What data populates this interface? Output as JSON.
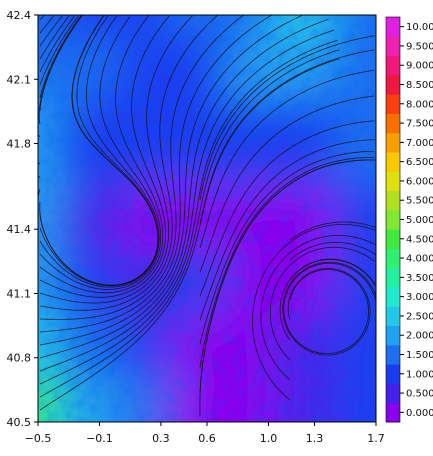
{
  "chart_data": {
    "type": "heatmap",
    "title": "",
    "xlabel": "",
    "ylabel": "",
    "xlim": [
      -0.5,
      1.7
    ],
    "ylim": [
      40.5,
      42.4
    ],
    "x_ticks": [
      {
        "value": -0.5,
        "label": "−0.5"
      },
      {
        "value": -0.1,
        "label": "−0.1"
      },
      {
        "value": 0.3,
        "label": "0.3"
      },
      {
        "value": 0.6,
        "label": "0.6"
      },
      {
        "value": 1.0,
        "label": "1.0"
      },
      {
        "value": 1.3,
        "label": "1.3"
      },
      {
        "value": 1.7,
        "label": "1.7"
      }
    ],
    "y_ticks": [
      {
        "value": 40.5,
        "label": "40.5"
      },
      {
        "value": 40.8,
        "label": "40.8"
      },
      {
        "value": 41.1,
        "label": "41.1"
      },
      {
        "value": 41.4,
        "label": "41.4"
      },
      {
        "value": 41.8,
        "label": "41.8"
      },
      {
        "value": 42.1,
        "label": "42.1"
      },
      {
        "value": 42.4,
        "label": "42.4"
      }
    ],
    "colorbar": {
      "levels": [
        {
          "value": 0.0,
          "label": "0.000",
          "color": "#8800ee"
        },
        {
          "value": 0.5,
          "label": "0.500",
          "color": "#4420e8"
        },
        {
          "value": 1.0,
          "label": "1.000",
          "color": "#1a3cf0"
        },
        {
          "value": 1.5,
          "label": "1.500",
          "color": "#1e6ef0"
        },
        {
          "value": 2.0,
          "label": "2.000",
          "color": "#20a0f0"
        },
        {
          "value": 2.5,
          "label": "2.500",
          "color": "#22c8e8"
        },
        {
          "value": 3.0,
          "label": "3.000",
          "color": "#22e8d0"
        },
        {
          "value": 3.5,
          "label": "3.500",
          "color": "#22f0a0"
        },
        {
          "value": 4.0,
          "label": "4.000",
          "color": "#30f070"
        },
        {
          "value": 4.5,
          "label": "4.500",
          "color": "#40e840"
        },
        {
          "value": 5.0,
          "label": "5.000",
          "color": "#80e830"
        },
        {
          "value": 5.5,
          "label": "5.500",
          "color": "#b0e020"
        },
        {
          "value": 6.0,
          "label": "6.000",
          "color": "#e0e010"
        },
        {
          "value": 6.5,
          "label": "6.500",
          "color": "#f8c800"
        },
        {
          "value": 7.0,
          "label": "7.000",
          "color": "#f8a000"
        },
        {
          "value": 7.5,
          "label": "7.500",
          "color": "#f87000"
        },
        {
          "value": 8.0,
          "label": "8.000",
          "color": "#f84010"
        },
        {
          "value": 8.5,
          "label": "8.500",
          "color": "#f01840"
        },
        {
          "value": 9.0,
          "label": "9.000",
          "color": "#f01878"
        },
        {
          "value": 9.5,
          "label": "9.500",
          "color": "#f020b0"
        },
        {
          "value": 10.0,
          "label": "10.00",
          "color": "#e020e0"
        }
      ]
    },
    "field_regions": [
      {
        "x": -0.5,
        "y": 42.4,
        "level": 1.5
      },
      {
        "x": -0.1,
        "y": 42.4,
        "level": 1.0
      },
      {
        "x": 0.3,
        "y": 42.4,
        "level": 1.0
      },
      {
        "x": 0.6,
        "y": 42.4,
        "level": 1.5
      },
      {
        "x": 1.0,
        "y": 42.4,
        "level": 1.5
      },
      {
        "x": 1.3,
        "y": 42.4,
        "level": 2.5
      },
      {
        "x": 1.7,
        "y": 42.4,
        "level": 1.5
      },
      {
        "x": -0.5,
        "y": 42.1,
        "level": 1.5
      },
      {
        "x": -0.1,
        "y": 42.1,
        "level": 1.5
      },
      {
        "x": 0.3,
        "y": 42.1,
        "level": 1.0
      },
      {
        "x": 0.6,
        "y": 42.1,
        "level": 1.0
      },
      {
        "x": 1.0,
        "y": 42.1,
        "level": 2.0
      },
      {
        "x": 1.3,
        "y": 42.1,
        "level": 2.0
      },
      {
        "x": 1.7,
        "y": 42.1,
        "level": 1.5
      },
      {
        "x": -0.5,
        "y": 41.8,
        "level": 2.0
      },
      {
        "x": -0.1,
        "y": 41.8,
        "level": 1.0
      },
      {
        "x": 0.3,
        "y": 41.8,
        "level": 1.0
      },
      {
        "x": 0.6,
        "y": 41.8,
        "level": 1.0
      },
      {
        "x": 1.0,
        "y": 41.8,
        "level": 1.0
      },
      {
        "x": 1.3,
        "y": 41.8,
        "level": 1.0
      },
      {
        "x": 1.7,
        "y": 41.8,
        "level": 1.5
      },
      {
        "x": -0.5,
        "y": 41.4,
        "level": 2.0
      },
      {
        "x": -0.1,
        "y": 41.4,
        "level": 0.5
      },
      {
        "x": 0.3,
        "y": 41.4,
        "level": 0.0
      },
      {
        "x": 0.6,
        "y": 41.4,
        "level": 0.0
      },
      {
        "x": 1.0,
        "y": 41.4,
        "level": 0.0
      },
      {
        "x": 1.3,
        "y": 41.4,
        "level": 0.0
      },
      {
        "x": 1.7,
        "y": 41.4,
        "level": 1.0
      },
      {
        "x": -0.5,
        "y": 41.1,
        "level": 2.0
      },
      {
        "x": -0.1,
        "y": 41.1,
        "level": 1.0
      },
      {
        "x": 0.3,
        "y": 41.1,
        "level": 0.5
      },
      {
        "x": 0.6,
        "y": 41.1,
        "level": 1.0
      },
      {
        "x": 1.0,
        "y": 41.1,
        "level": 0.0
      },
      {
        "x": 1.3,
        "y": 41.1,
        "level": 0.0
      },
      {
        "x": 1.7,
        "y": 41.1,
        "level": 1.0
      },
      {
        "x": -0.5,
        "y": 40.8,
        "level": 2.5
      },
      {
        "x": -0.1,
        "y": 40.8,
        "level": 1.5
      },
      {
        "x": 0.3,
        "y": 40.8,
        "level": 1.0
      },
      {
        "x": 0.6,
        "y": 40.8,
        "level": 0.0
      },
      {
        "x": 1.0,
        "y": 40.8,
        "level": 0.0
      },
      {
        "x": 1.3,
        "y": 40.8,
        "level": 0.5
      },
      {
        "x": 1.7,
        "y": 40.8,
        "level": 1.0
      },
      {
        "x": -0.5,
        "y": 40.5,
        "level": 4.0
      },
      {
        "x": -0.1,
        "y": 40.5,
        "level": 2.0
      },
      {
        "x": 0.3,
        "y": 40.5,
        "level": 1.5
      },
      {
        "x": 0.6,
        "y": 40.5,
        "level": 0.0
      },
      {
        "x": 1.0,
        "y": 40.5,
        "level": 0.0
      },
      {
        "x": 1.3,
        "y": 40.5,
        "level": 0.5
      },
      {
        "x": 1.7,
        "y": 40.5,
        "level": 1.0
      }
    ],
    "overlay": "streamlines",
    "grid": false,
    "legend": "colorbar-right"
  }
}
